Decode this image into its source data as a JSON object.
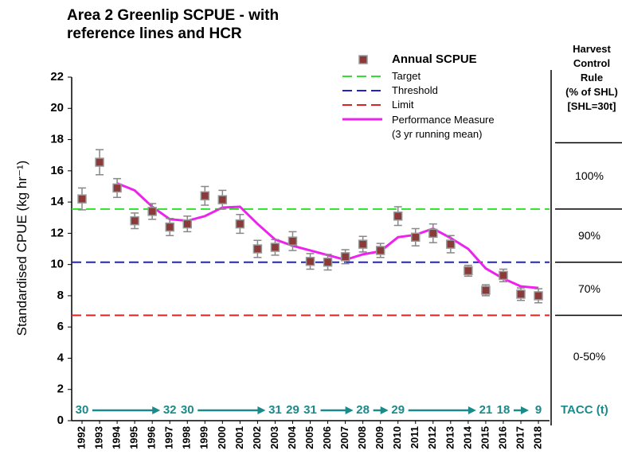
{
  "chart_data": {
    "type": "scatter-line",
    "title": "Area 2 Greenlip SCPUE - with reference lines and HCR",
    "y_label": "Standardised CPUE (kg hr⁻¹)",
    "categories": [
      "1992",
      "1993",
      "1994",
      "1995",
      "1996",
      "1997",
      "1998",
      "1999",
      "2000",
      "2001",
      "2002",
      "2003",
      "2004",
      "2005",
      "2006",
      "2007",
      "2008",
      "2009",
      "2010",
      "2011",
      "2012",
      "2013",
      "2014",
      "2015",
      "2016",
      "2017",
      "2018"
    ],
    "ylim": [
      0,
      22
    ],
    "yticks": [
      0,
      2,
      4,
      6,
      8,
      10,
      12,
      14,
      16,
      18,
      20,
      22
    ],
    "series": [
      {
        "name": "Annual SCPUE",
        "color": "#8b3a3a",
        "values": [
          14.2,
          16.55,
          14.9,
          12.8,
          13.4,
          12.4,
          12.6,
          14.4,
          14.15,
          12.6,
          11.0,
          11.1,
          11.5,
          10.2,
          10.15,
          10.5,
          11.3,
          10.9,
          13.1,
          11.75,
          12.0,
          11.3,
          9.6,
          8.35,
          9.3,
          8.1,
          8.0
        ],
        "errors": [
          0.7,
          0.8,
          0.6,
          0.5,
          0.5,
          0.55,
          0.5,
          0.6,
          0.6,
          0.6,
          0.55,
          0.5,
          0.6,
          0.5,
          0.5,
          0.45,
          0.5,
          0.45,
          0.6,
          0.55,
          0.6,
          0.55,
          0.35,
          0.35,
          0.4,
          0.4,
          0.45
        ]
      },
      {
        "name": "Performance Measure (3 yr running mean)",
        "color": "#ee22ee",
        "values": [
          null,
          null,
          15.2,
          14.75,
          13.7,
          12.9,
          12.8,
          13.1,
          13.65,
          13.7,
          12.6,
          11.6,
          11.2,
          10.9,
          10.6,
          10.3,
          10.65,
          10.85,
          11.75,
          11.9,
          12.3,
          11.7,
          11.0,
          9.75,
          9.1,
          8.6,
          8.5
        ]
      }
    ],
    "reference_lines": [
      {
        "name": "Target",
        "color": "#33dd33",
        "value": 13.55
      },
      {
        "name": "Threshold",
        "color": "#2222cc",
        "value": 10.15
      },
      {
        "name": "Limit",
        "color": "#dd2222",
        "value": 6.75
      }
    ],
    "hcr": {
      "title": [
        "Harvest",
        "Control",
        "Rule",
        "(% of SHL)",
        "[SHL=30t]"
      ],
      "boundaries": [
        17.8,
        13.55,
        10.15,
        6.75
      ],
      "labels": [
        "100%",
        "90%",
        "70%",
        "0-50%"
      ]
    },
    "tacc": {
      "label": "TACC (t)",
      "color": "#1a8a8a",
      "categories": [
        "1992",
        "1997",
        "1998",
        "2003",
        "2004",
        "2005",
        "2008",
        "2010",
        "2015",
        "2016",
        "2018"
      ],
      "values": [
        30,
        32,
        30,
        31,
        29,
        31,
        28,
        29,
        21,
        18,
        9
      ]
    }
  }
}
